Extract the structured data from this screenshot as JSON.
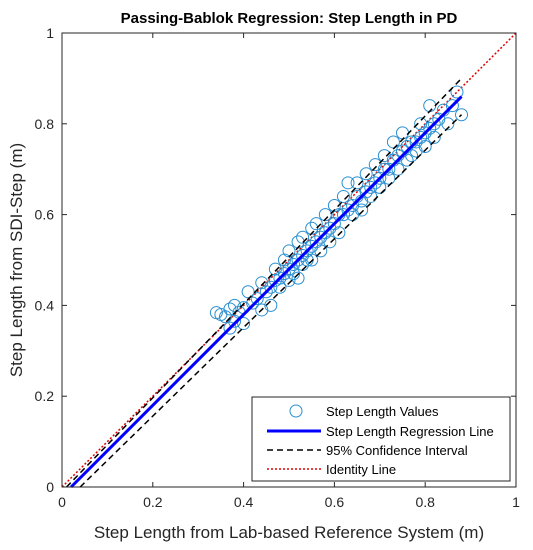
{
  "chart_data": {
    "type": "scatter",
    "title": "Passing-Bablok Regression: Step Length in PD",
    "xlabel": "Step Length from Lab-based Reference System (m)",
    "ylabel": "Step Length from SDI-Step (m)",
    "xlim": [
      0,
      1
    ],
    "ylim": [
      0,
      1
    ],
    "xticks": [
      "0",
      "0.2",
      "0.4",
      "0.6",
      "0.8",
      "1"
    ],
    "yticks": [
      "0",
      "0.2",
      "0.4",
      "0.6",
      "0.8",
      "1"
    ],
    "grid": false,
    "legend_position": "bottom-right",
    "colors": {
      "points": "#2a8fd0",
      "regression": "#0000ff",
      "ci": "#000000",
      "identity": "#dd0000"
    },
    "series": [
      {
        "name": "Step Length Values",
        "kind": "scatter",
        "points": [
          [
            0.34,
            0.384
          ],
          [
            0.35,
            0.38
          ],
          [
            0.36,
            0.375
          ],
          [
            0.37,
            0.392
          ],
          [
            0.37,
            0.35
          ],
          [
            0.38,
            0.365
          ],
          [
            0.38,
            0.4
          ],
          [
            0.39,
            0.385
          ],
          [
            0.4,
            0.395
          ],
          [
            0.4,
            0.36
          ],
          [
            0.41,
            0.43
          ],
          [
            0.42,
            0.405
          ],
          [
            0.43,
            0.415
          ],
          [
            0.44,
            0.45
          ],
          [
            0.44,
            0.39
          ],
          [
            0.45,
            0.43
          ],
          [
            0.46,
            0.44
          ],
          [
            0.46,
            0.4
          ],
          [
            0.47,
            0.48
          ],
          [
            0.47,
            0.455
          ],
          [
            0.48,
            0.44
          ],
          [
            0.48,
            0.46
          ],
          [
            0.49,
            0.47
          ],
          [
            0.49,
            0.5
          ],
          [
            0.5,
            0.48
          ],
          [
            0.5,
            0.455
          ],
          [
            0.5,
            0.52
          ],
          [
            0.51,
            0.49
          ],
          [
            0.51,
            0.47
          ],
          [
            0.52,
            0.5
          ],
          [
            0.52,
            0.54
          ],
          [
            0.52,
            0.46
          ],
          [
            0.53,
            0.51
          ],
          [
            0.53,
            0.55
          ],
          [
            0.53,
            0.49
          ],
          [
            0.54,
            0.52
          ],
          [
            0.54,
            0.5
          ],
          [
            0.55,
            0.53
          ],
          [
            0.55,
            0.57
          ],
          [
            0.55,
            0.5
          ],
          [
            0.56,
            0.54
          ],
          [
            0.56,
            0.58
          ],
          [
            0.57,
            0.55
          ],
          [
            0.57,
            0.52
          ],
          [
            0.58,
            0.56
          ],
          [
            0.58,
            0.6
          ],
          [
            0.59,
            0.57
          ],
          [
            0.59,
            0.54
          ],
          [
            0.6,
            0.58
          ],
          [
            0.6,
            0.62
          ],
          [
            0.61,
            0.6
          ],
          [
            0.61,
            0.56
          ],
          [
            0.62,
            0.6
          ],
          [
            0.62,
            0.64
          ],
          [
            0.63,
            0.61
          ],
          [
            0.63,
            0.67
          ],
          [
            0.64,
            0.62
          ],
          [
            0.64,
            0.6
          ],
          [
            0.65,
            0.64
          ],
          [
            0.65,
            0.67
          ],
          [
            0.66,
            0.63
          ],
          [
            0.66,
            0.61
          ],
          [
            0.67,
            0.65
          ],
          [
            0.67,
            0.69
          ],
          [
            0.68,
            0.66
          ],
          [
            0.68,
            0.64
          ],
          [
            0.69,
            0.67
          ],
          [
            0.69,
            0.71
          ],
          [
            0.7,
            0.68
          ],
          [
            0.7,
            0.66
          ],
          [
            0.71,
            0.7
          ],
          [
            0.71,
            0.73
          ],
          [
            0.72,
            0.7
          ],
          [
            0.72,
            0.68
          ],
          [
            0.73,
            0.72
          ],
          [
            0.73,
            0.76
          ],
          [
            0.74,
            0.73
          ],
          [
            0.74,
            0.7
          ],
          [
            0.75,
            0.74
          ],
          [
            0.75,
            0.78
          ],
          [
            0.76,
            0.75
          ],
          [
            0.76,
            0.72
          ],
          [
            0.77,
            0.76
          ],
          [
            0.77,
            0.73
          ],
          [
            0.78,
            0.76
          ],
          [
            0.78,
            0.74
          ],
          [
            0.79,
            0.77
          ],
          [
            0.79,
            0.8
          ],
          [
            0.8,
            0.78
          ],
          [
            0.8,
            0.75
          ],
          [
            0.81,
            0.79
          ],
          [
            0.81,
            0.84
          ],
          [
            0.82,
            0.8
          ],
          [
            0.82,
            0.77
          ],
          [
            0.83,
            0.81
          ],
          [
            0.84,
            0.83
          ],
          [
            0.85,
            0.8
          ],
          [
            0.86,
            0.84
          ],
          [
            0.87,
            0.87
          ],
          [
            0.88,
            0.82
          ]
        ]
      },
      {
        "name": "Step Length Regression Line",
        "kind": "line",
        "style": "solid",
        "points": [
          [
            0.02,
            0.0
          ],
          [
            0.88,
            0.86
          ]
        ]
      },
      {
        "name": "95% Confidence Interval",
        "kind": "line",
        "style": "dashed",
        "lines": [
          [
            [
              0.01,
              0.0
            ],
            [
              0.88,
              0.9
            ]
          ],
          [
            [
              0.04,
              0.0
            ],
            [
              0.88,
              0.82
            ]
          ]
        ]
      },
      {
        "name": "Identity Line",
        "kind": "line",
        "style": "dotted",
        "points": [
          [
            0,
            0
          ],
          [
            1,
            1
          ]
        ]
      }
    ]
  }
}
